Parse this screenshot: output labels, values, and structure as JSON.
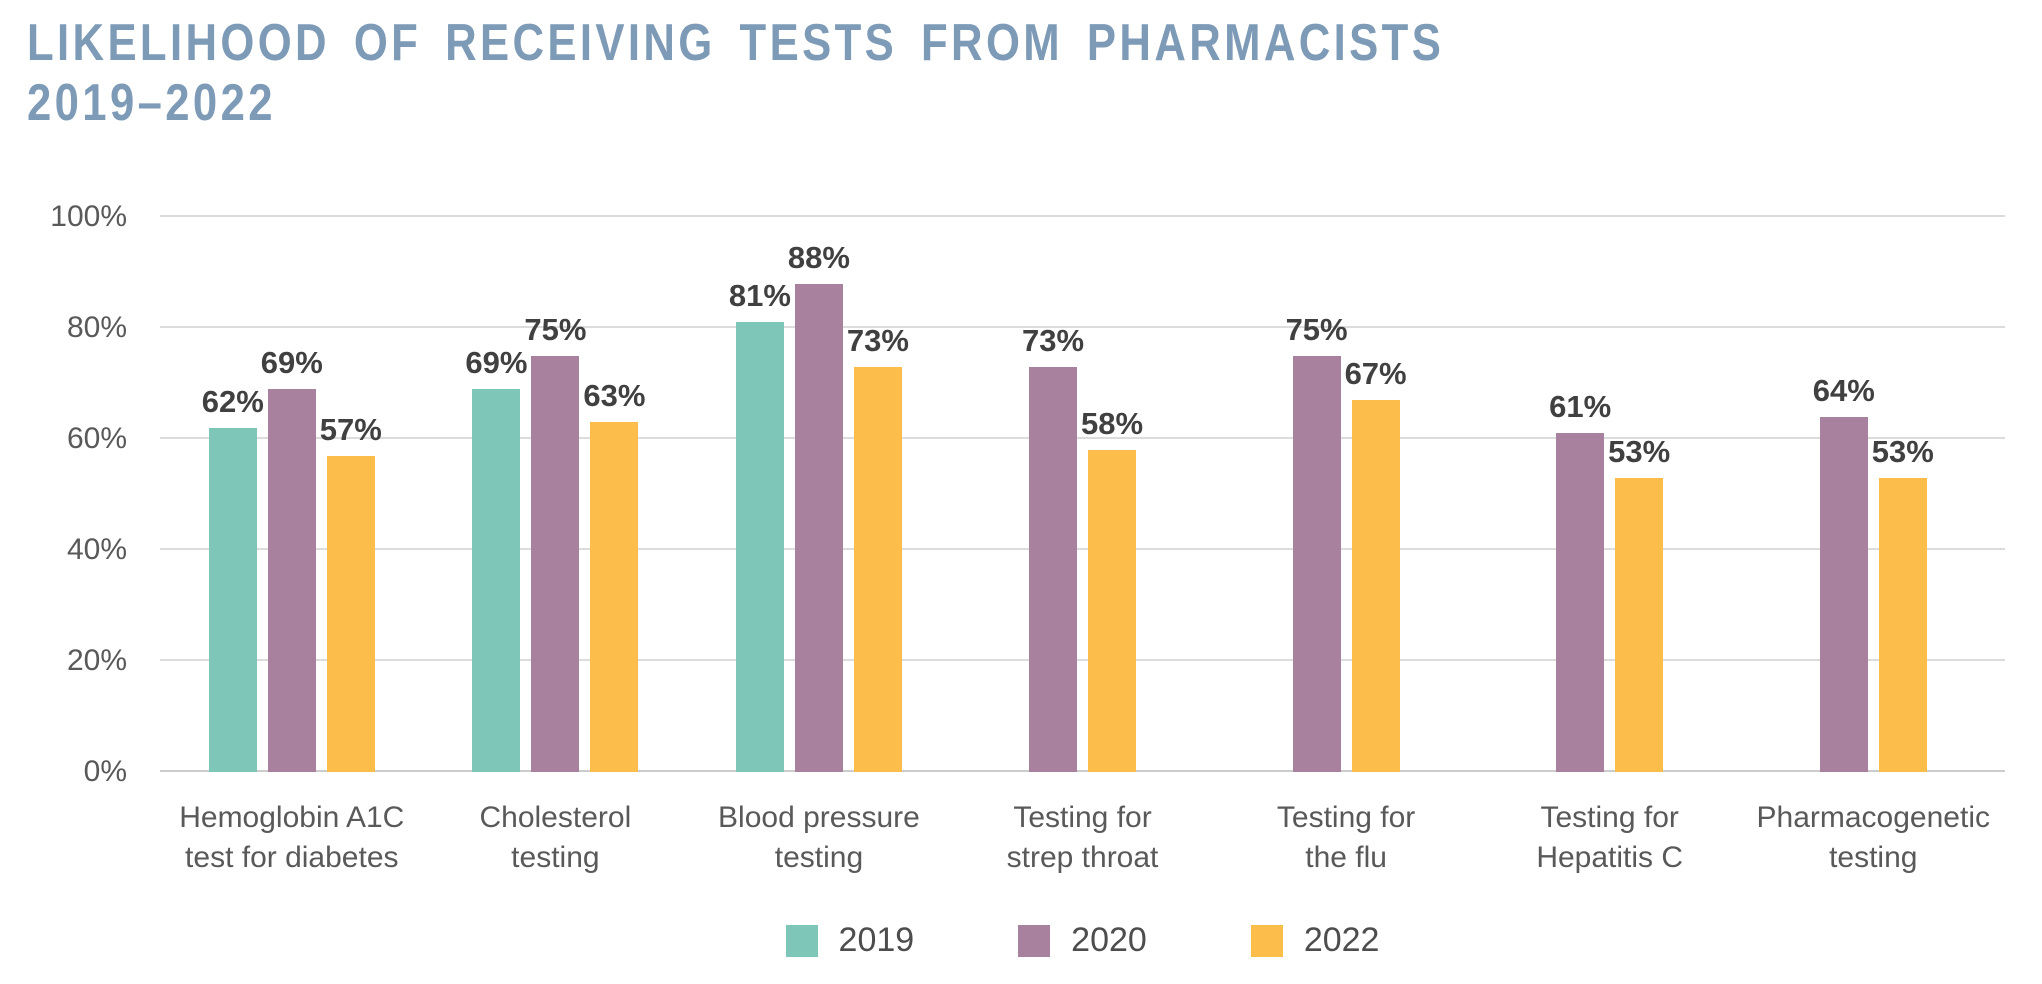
{
  "page": {
    "background": "#ffffff"
  },
  "title": {
    "line1": "LIKELIHOOD OF RECEIVING TESTS FROM PHARMACISTS",
    "line2": "2019–2022",
    "color": "#7d9ab7"
  },
  "style": {
    "gridline_color": "#dcdcdc",
    "baseline_color": "#cccccc",
    "axis_text_color": "#595959",
    "value_text_color": "#404040",
    "legend_text_color": "#4d4d4d"
  },
  "chart_data": {
    "type": "bar",
    "title": "Likelihood of receiving tests from pharmacists 2019–2022",
    "xlabel": "",
    "ylabel": "",
    "ylim": [
      0,
      100
    ],
    "grid": true,
    "legend_position": "bottom",
    "y_ticks": [
      0,
      20,
      40,
      60,
      80,
      100
    ],
    "y_tick_suffix": "%",
    "value_suffix": "%",
    "categories": [
      "Hemoglobin A1C test for diabetes",
      "Cholesterol testing",
      "Blood pressure testing",
      "Testing for strep throat",
      "Testing for the flu",
      "Testing for Hepatitis C",
      "Pharmacogenetic testing"
    ],
    "category_lines": [
      [
        "Hemoglobin A1C",
        "test for diabetes"
      ],
      [
        "Cholesterol",
        "testing"
      ],
      [
        "Blood pressure",
        "testing"
      ],
      [
        "Testing for",
        "strep throat"
      ],
      [
        "Testing for",
        "the flu"
      ],
      [
        "Testing for",
        "Hepatitis C"
      ],
      [
        "Pharmacogenetic",
        "testing"
      ]
    ],
    "series": [
      {
        "name": "2019",
        "color": "#7ec6b8",
        "values": [
          62,
          69,
          81,
          null,
          null,
          null,
          null
        ]
      },
      {
        "name": "2020",
        "color": "#a7819e",
        "values": [
          69,
          75,
          88,
          73,
          75,
          61,
          64
        ]
      },
      {
        "name": "2022",
        "color": "#fcbd4a",
        "values": [
          57,
          63,
          73,
          58,
          67,
          53,
          53
        ]
      }
    ]
  }
}
